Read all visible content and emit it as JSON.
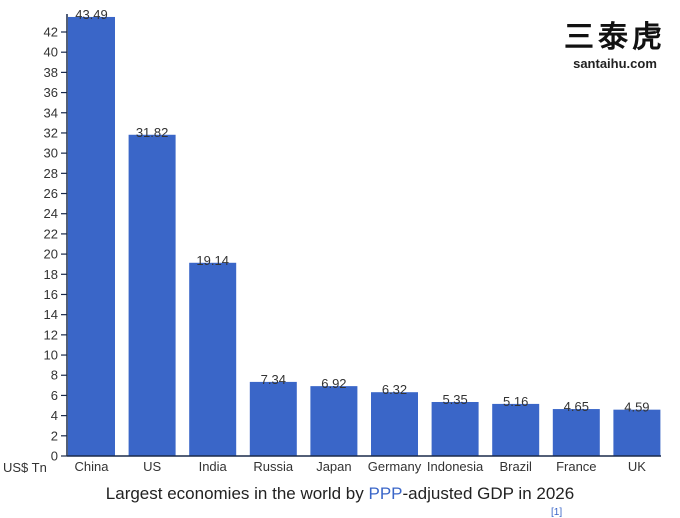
{
  "chart_data": {
    "type": "bar",
    "title": "",
    "xlabel": "",
    "ylabel": "US$ Tn",
    "categories": [
      "China",
      "US",
      "India",
      "Russia",
      "Japan",
      "Germany",
      "Indonesia",
      "Brazil",
      "France",
      "UK"
    ],
    "values": [
      43.49,
      31.82,
      19.14,
      7.34,
      6.92,
      6.32,
      5.35,
      5.16,
      4.65,
      4.59
    ],
    "value_labels": [
      "43.49",
      "31.82",
      "19.14",
      "7.34",
      "6.92",
      "6.32",
      "5.35",
      "5.16",
      "4.65",
      "4.59"
    ],
    "ylim": [
      0,
      43.49
    ],
    "yticks": [
      0,
      2,
      4,
      6,
      8,
      10,
      12,
      14,
      16,
      18,
      20,
      22,
      24,
      26,
      28,
      30,
      32,
      34,
      36,
      38,
      40,
      42
    ],
    "grid": false,
    "legend": null,
    "bar_color": "#3a66c8"
  },
  "caption": {
    "before": "Largest economies in the world by ",
    "link": "PPP",
    "after": "-adjusted GDP in 2026",
    "reference": "[1]",
    "link_color": "#3a66c8"
  },
  "watermark": {
    "chinese": "三泰虎",
    "site": "santaihu.com"
  }
}
